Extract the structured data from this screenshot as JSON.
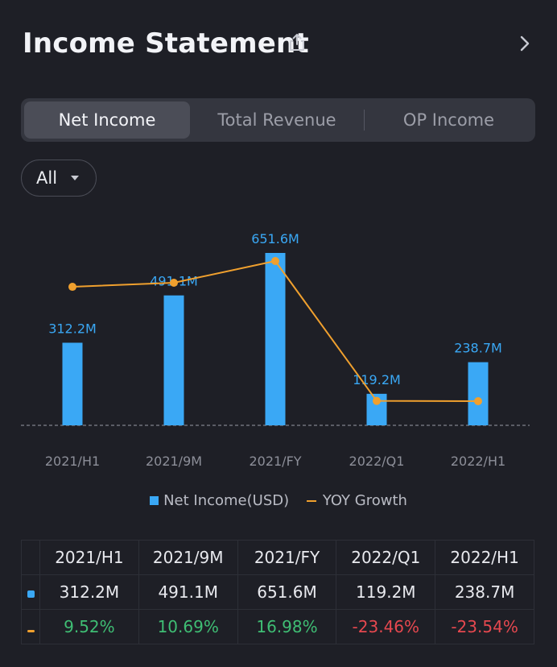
{
  "header": {
    "title": "Income Statement"
  },
  "tabs": [
    {
      "label": "Net Income"
    },
    {
      "label": "Total Revenue"
    },
    {
      "label": "OP Income"
    }
  ],
  "filter": {
    "label": "All"
  },
  "colors": {
    "bar": "#3aa8f5",
    "line": "#f0a02e",
    "positive": "#3fbe74",
    "negative": "#e6484f"
  },
  "chart_data": {
    "type": "bar",
    "categories": [
      "2021/H1",
      "2021/9M",
      "2021/FY",
      "2022/Q1",
      "2022/H1"
    ],
    "series": [
      {
        "name": "Net Income(USD)",
        "type": "bar",
        "values": [
          312.2,
          491.1,
          651.6,
          119.2,
          238.7
        ],
        "labels": [
          "312.2M",
          "491.1M",
          "651.6M",
          "119.2M",
          "238.7M"
        ]
      },
      {
        "name": "YOY Growth",
        "type": "line",
        "values": [
          9.52,
          10.69,
          16.98,
          -23.46,
          -23.54
        ]
      }
    ],
    "legend": [
      "Net Income(USD)",
      "YOY Growth"
    ],
    "baseline": 0
  },
  "table": {
    "headers": [
      "2021/H1",
      "2021/9M",
      "2021/FY",
      "2022/Q1",
      "2022/H1"
    ],
    "income_row": [
      "312.2M",
      "491.1M",
      "651.6M",
      "119.2M",
      "238.7M"
    ],
    "growth_row": [
      "9.52%",
      "10.69%",
      "16.98%",
      "-23.46%",
      "-23.54%"
    ]
  }
}
